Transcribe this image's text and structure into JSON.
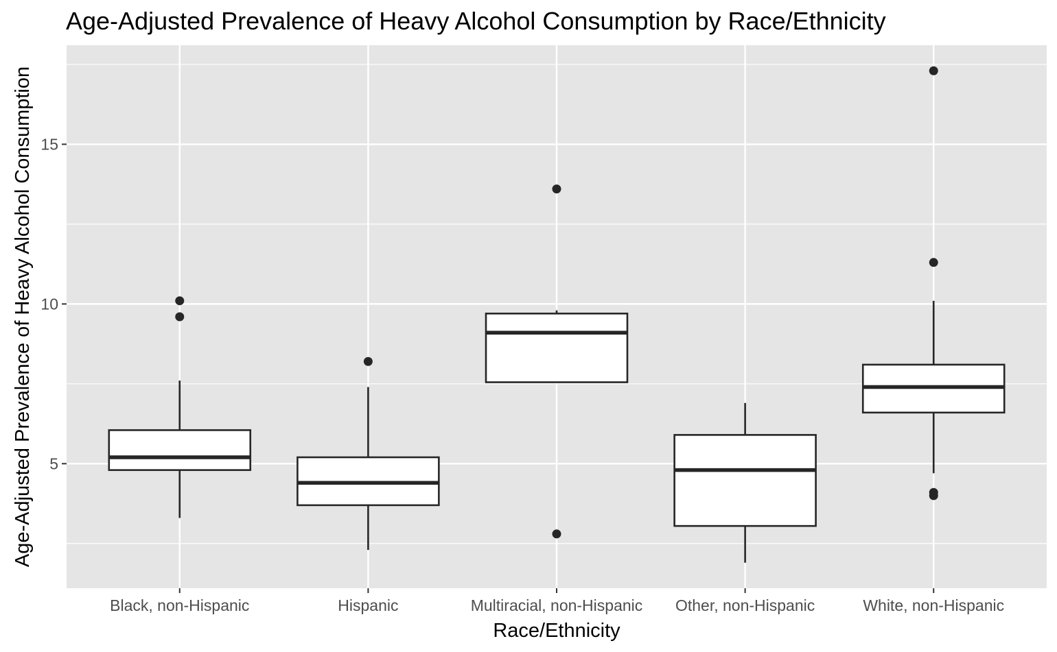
{
  "chart_data": {
    "type": "boxplot",
    "title": "Age-Adjusted Prevalence of Heavy Alcohol Consumption by Race/Ethnicity",
    "xlabel": "Race/Ethnicity",
    "ylabel": "Age-Adjusted Prevalence of Heavy Alcohol Consumption",
    "ylim": [
      1.1,
      18.1
    ],
    "yticks": [
      5,
      10,
      15
    ],
    "ytick_labels": [
      "5",
      "10",
      "15"
    ],
    "grid": true,
    "categories": [
      "Black, non-Hispanic",
      "Hispanic",
      "Multiracial, non-Hispanic",
      "Other, non-Hispanic",
      "White, non-Hispanic"
    ],
    "boxes": [
      {
        "category": "Black, non-Hispanic",
        "whisker_low": 3.3,
        "q1": 4.8,
        "median": 5.2,
        "q3": 6.05,
        "whisker_high": 7.6,
        "outliers": [
          9.6,
          10.1
        ]
      },
      {
        "category": "Hispanic",
        "whisker_low": 2.3,
        "q1": 3.7,
        "median": 4.4,
        "q3": 5.2,
        "whisker_high": 7.4,
        "outliers": [
          8.2
        ]
      },
      {
        "category": "Multiracial, non-Hispanic",
        "whisker_low": 7.55,
        "q1": 7.55,
        "median": 9.1,
        "q3": 9.7,
        "whisker_high": 9.8,
        "outliers": [
          2.8,
          13.6
        ]
      },
      {
        "category": "Other, non-Hispanic",
        "whisker_low": 1.9,
        "q1": 3.05,
        "median": 4.8,
        "q3": 5.9,
        "whisker_high": 6.9,
        "outliers": []
      },
      {
        "category": "White, non-Hispanic",
        "whisker_low": 4.7,
        "q1": 6.6,
        "median": 7.4,
        "q3": 8.1,
        "whisker_high": 10.1,
        "outliers": [
          4.0,
          4.1,
          11.3,
          17.3
        ]
      }
    ],
    "colors": {
      "panel": "#e5e5e5",
      "grid": "#ffffff",
      "box_fill": "#ffffff",
      "box_stroke": "#262626",
      "point": "#262626",
      "tick_text": "#4d4d4d"
    }
  }
}
